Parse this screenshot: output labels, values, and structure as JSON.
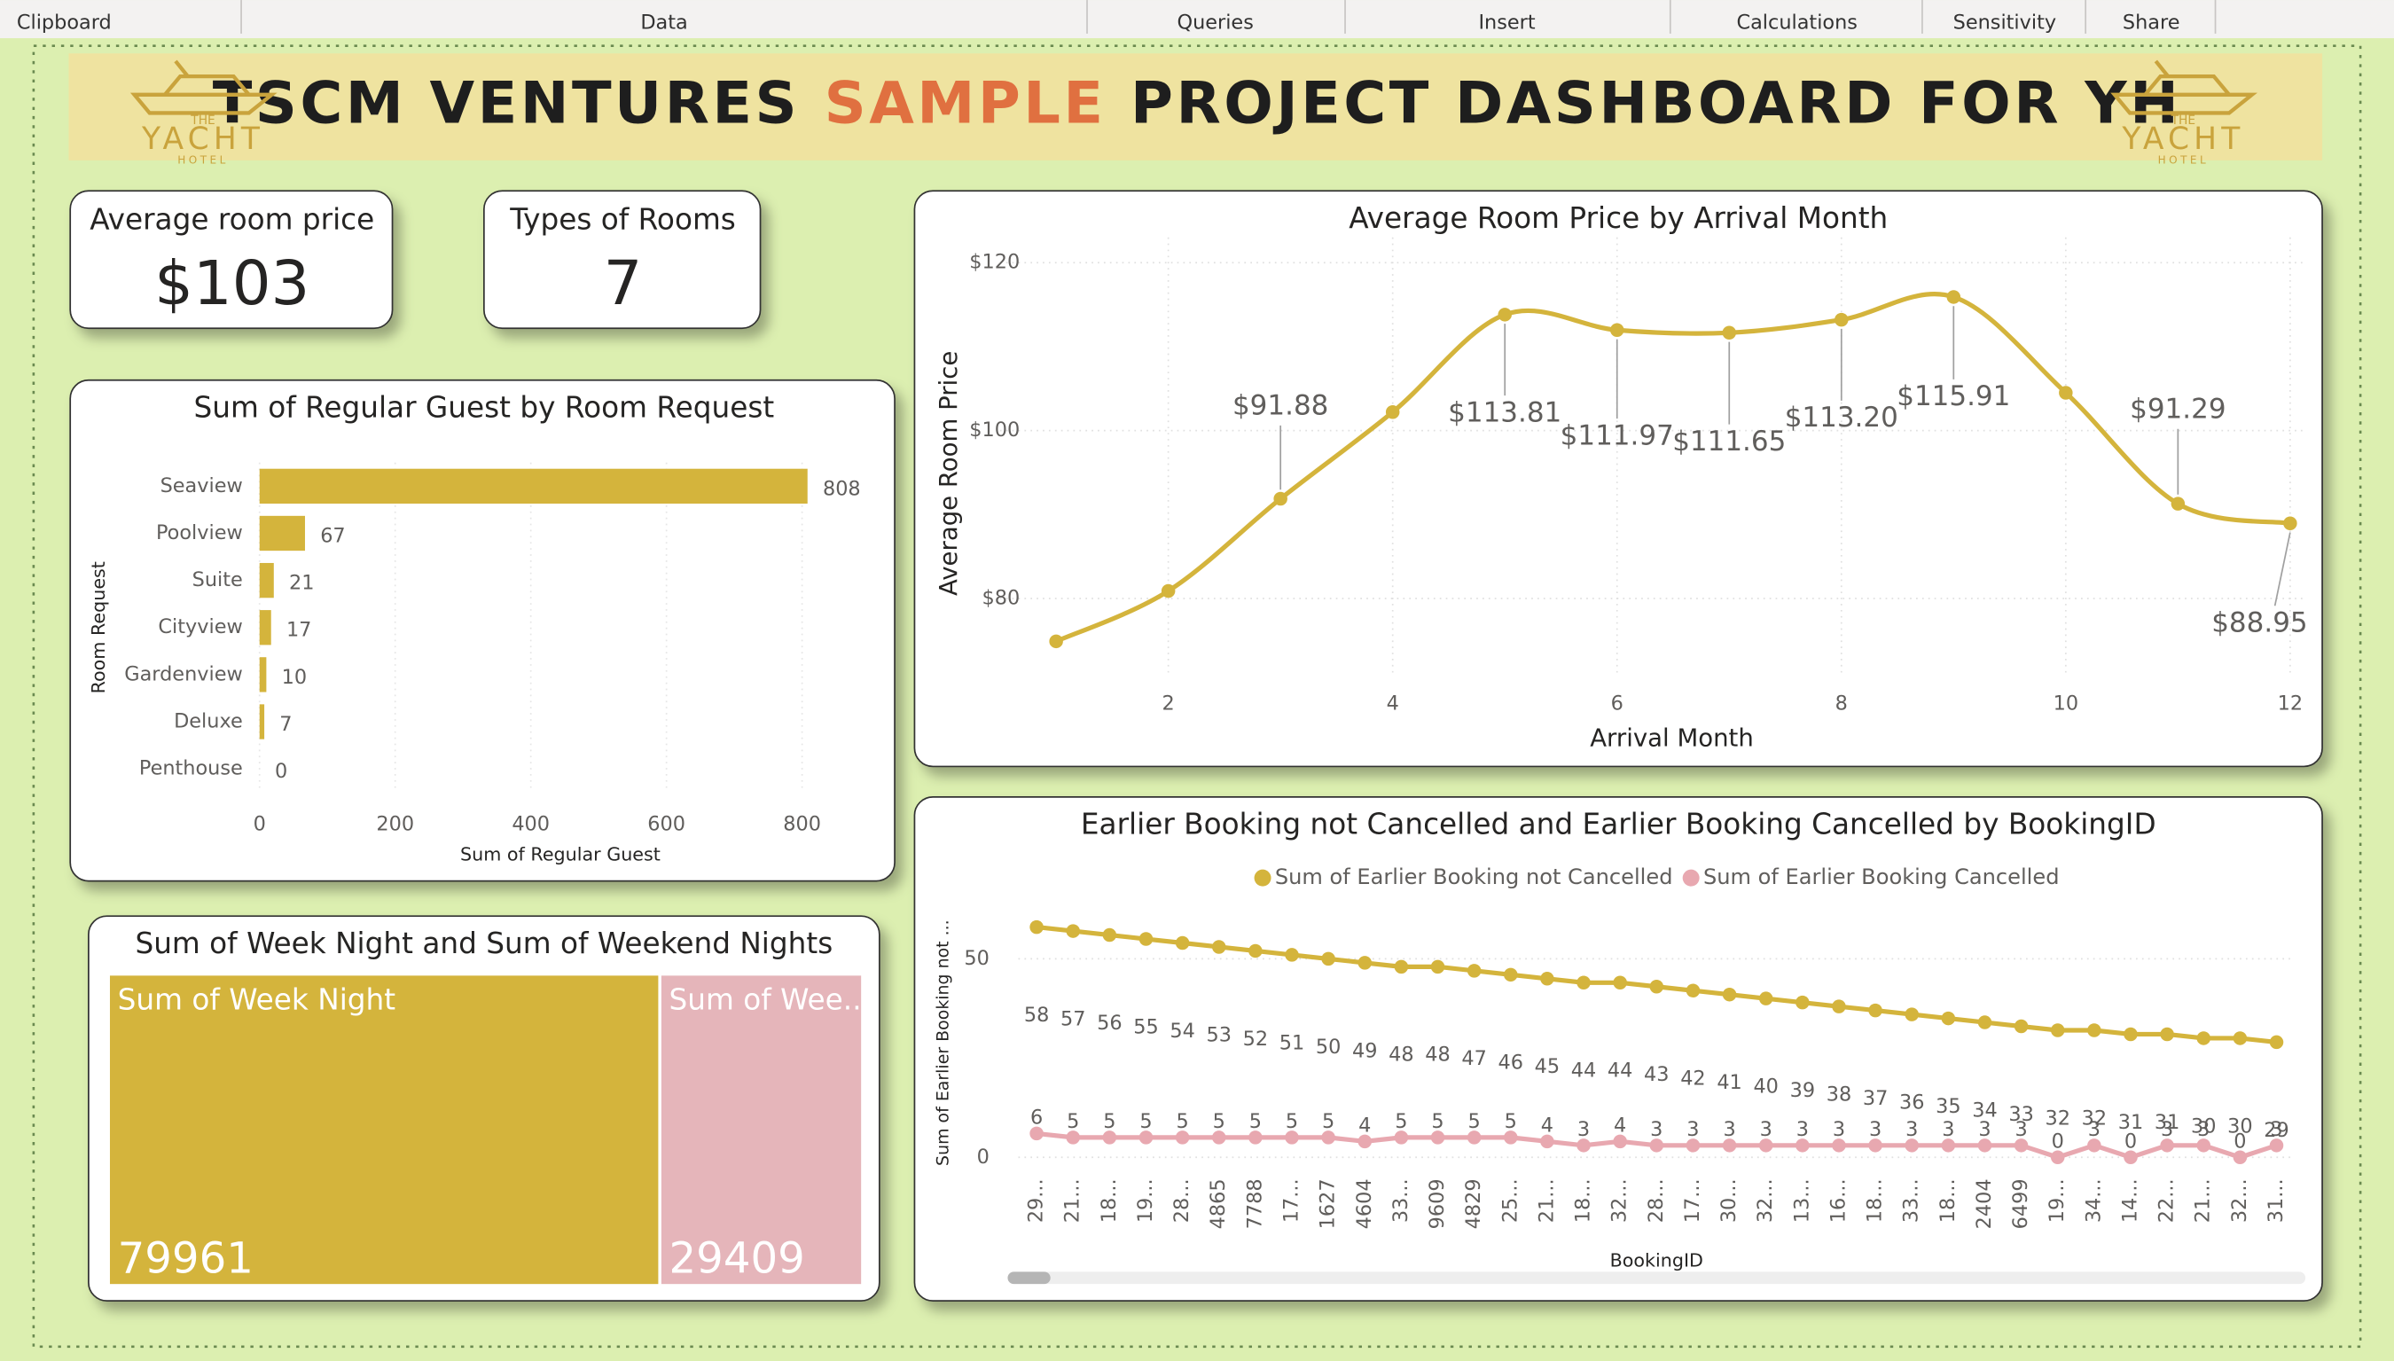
{
  "toolbar": [
    "Clipboard",
    "Data",
    "Queries",
    "Insert",
    "Calculations",
    "Sensitivity",
    "Share"
  ],
  "header": {
    "title_parts": [
      "TSCM VENTURES",
      "SAMPLE",
      "PROJECT DASHBOARD FOR YH"
    ],
    "logo": [
      "THE",
      "YACHT",
      "HOTEL"
    ]
  },
  "cards": [
    {
      "label": "Average room price",
      "value": "$103"
    },
    {
      "label": "Types of Rooms",
      "value": "7"
    }
  ],
  "chart_data": [
    {
      "type": "bar",
      "orientation": "horizontal",
      "title": "Sum of Regular Guest by Room Request",
      "categories": [
        "Seaview",
        "Poolview",
        "Suite",
        "Cityview",
        "Gardenview",
        "Deluxe",
        "Penthouse"
      ],
      "values": [
        808,
        67,
        21,
        17,
        10,
        7,
        0
      ],
      "color": "#d4b43c",
      "xlim": [
        0,
        878
      ],
      "xticks": [
        0,
        200,
        400,
        600,
        800
      ],
      "x_label": "Sum of Regular Guest",
      "y_label": "Room Request",
      "grid": true
    },
    {
      "type": "line",
      "title": "Average Room Price by Arrival Month",
      "x": [
        1,
        2,
        3,
        4,
        5,
        6,
        7,
        8,
        9,
        10,
        11,
        12
      ],
      "values": [
        74.9,
        80.9,
        91.88,
        102.2,
        113.81,
        111.97,
        111.65,
        113.2,
        115.91,
        104.5,
        91.29,
        88.95
      ],
      "value_labels": [
        null,
        null,
        "$91.88",
        null,
        "$113.81",
        "$111.97",
        "$111.65",
        "$113.20",
        "$115.91",
        null,
        "$91.29",
        "$88.95"
      ],
      "color": "#d4b43c",
      "smooth": true,
      "xlim": [
        0.5,
        12.15
      ],
      "xticks": [
        2,
        4,
        6,
        8,
        10,
        12
      ],
      "ylim": [
        71,
        123
      ],
      "yticks": [
        {
          "value": 80,
          "label": "$80"
        },
        {
          "value": 100,
          "label": "$100"
        },
        {
          "value": 120,
          "label": "$120"
        }
      ],
      "x_label": "Arrival Month",
      "y_label": "Average Room Price",
      "grid": true
    },
    {
      "type": "treemap",
      "title": "Sum of Week Night and Sum of Weekend Nights",
      "categories": [
        "Sum of Week Night",
        "Sum of Wee..."
      ],
      "values": [
        79961,
        29409
      ],
      "colors": [
        "#d4b43c",
        "#e5b5ba"
      ]
    },
    {
      "type": "line",
      "title": "Earlier Booking not Cancelled and Earlier Booking Cancelled by BookingID",
      "categories": [
        "29...",
        "21...",
        "18...",
        "19...",
        "28...",
        "4865",
        "7788",
        "17...",
        "1627",
        "4604",
        "33...",
        "9609",
        "4829",
        "25...",
        "21...",
        "18...",
        "32...",
        "28...",
        "17...",
        "30...",
        "32...",
        "13...",
        "16...",
        "18...",
        "33...",
        "18...",
        "2404",
        "6499",
        "19...",
        "34...",
        "14...",
        "22...",
        "21...",
        "32...",
        "31..."
      ],
      "series": [
        {
          "name": "Sum of Earlier Booking not Cancelled",
          "color": "#d4b43c",
          "values": [
            58,
            57,
            56,
            55,
            54,
            53,
            52,
            51,
            50,
            49,
            48,
            48,
            47,
            46,
            45,
            44,
            44,
            43,
            42,
            41,
            40,
            39,
            38,
            37,
            36,
            35,
            34,
            33,
            32,
            32,
            31,
            31,
            30,
            30,
            29
          ]
        },
        {
          "name": "Sum of Earlier Booking Cancelled",
          "color": "#e8a8b0",
          "values": [
            6,
            5,
            5,
            5,
            5,
            5,
            5,
            5,
            5,
            4,
            5,
            5,
            5,
            5,
            4,
            3,
            4,
            3,
            3,
            3,
            3,
            3,
            3,
            3,
            3,
            3,
            3,
            3,
            0,
            3,
            0,
            3,
            3,
            0,
            3
          ]
        }
      ],
      "ylim": [
        0,
        60
      ],
      "yticks": [
        0,
        50
      ],
      "x_label": "BookingID",
      "y_label": "Sum of Earlier Booking not ...",
      "grid": true,
      "legend": "top"
    }
  ]
}
